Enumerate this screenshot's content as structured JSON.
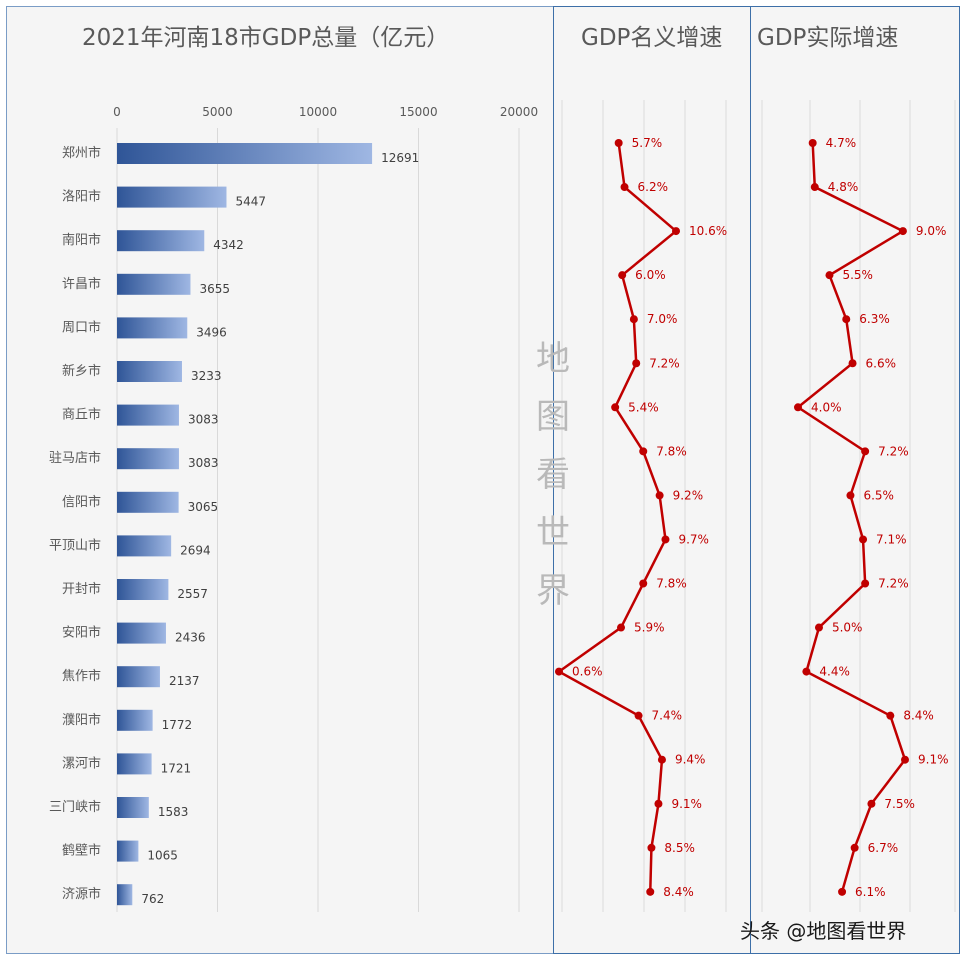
{
  "gdp_title": "2021年河南18市GDP总量（亿元）",
  "nominal_title": "GDP名义增速",
  "real_title": "GDP实际增速",
  "watermark": [
    "地",
    "图",
    "看",
    "世",
    "界"
  ],
  "credit": "头条 @地图看世界",
  "colors": {
    "bar_dark": "#2f5597",
    "bar_light": "#9fb7e3",
    "line": "#c00000",
    "label": "#c00000",
    "text": "#595959"
  },
  "chart_data": [
    {
      "type": "bar",
      "title": "2021年河南18市GDP总量（亿元）",
      "orientation": "horizontal",
      "categories": [
        "郑州市",
        "洛阳市",
        "南阳市",
        "许昌市",
        "周口市",
        "新乡市",
        "商丘市",
        "驻马店市",
        "信阳市",
        "平顶山市",
        "开封市",
        "安阳市",
        "焦作市",
        "濮阳市",
        "漯河市",
        "三门峡市",
        "鹤壁市",
        "济源市"
      ],
      "values": [
        12691,
        5447,
        4342,
        3655,
        3496,
        3233,
        3083,
        3083,
        3065,
        2694,
        2557,
        2436,
        2137,
        1772,
        1721,
        1583,
        1065,
        762
      ],
      "xlim": [
        0,
        20000
      ],
      "xticks": [
        0,
        5000,
        10000,
        15000,
        20000
      ],
      "grid": true
    },
    {
      "type": "line",
      "title": "GDP名义增速",
      "categories": [
        "郑州市",
        "洛阳市",
        "南阳市",
        "许昌市",
        "周口市",
        "新乡市",
        "商丘市",
        "驻马店市",
        "信阳市",
        "平顶山市",
        "开封市",
        "安阳市",
        "焦作市",
        "濮阳市",
        "漯河市",
        "三门峡市",
        "鹤壁市",
        "济源市"
      ],
      "values": [
        5.7,
        6.2,
        10.6,
        6.0,
        7.0,
        7.2,
        5.4,
        7.8,
        9.2,
        9.7,
        7.8,
        5.9,
        0.6,
        7.4,
        9.4,
        9.1,
        8.5,
        8.4
      ],
      "labels": [
        "5.7%",
        "6.2%",
        "10.6%",
        "6.0%",
        "7.0%",
        "7.2%",
        "5.4%",
        "7.8%",
        "9.2%",
        "9.7%",
        "7.8%",
        "5.9%",
        "0.6%",
        "7.4%",
        "9.4%",
        "9.1%",
        "8.5%",
        "8.4%"
      ],
      "grid": true
    },
    {
      "type": "line",
      "title": "GDP实际增速",
      "categories": [
        "郑州市",
        "洛阳市",
        "南阳市",
        "许昌市",
        "周口市",
        "新乡市",
        "商丘市",
        "驻马店市",
        "信阳市",
        "平顶山市",
        "开封市",
        "安阳市",
        "焦作市",
        "濮阳市",
        "漯河市",
        "三门峡市",
        "鹤壁市",
        "济源市"
      ],
      "values": [
        4.7,
        4.8,
        9.0,
        5.5,
        6.3,
        6.6,
        4.0,
        7.2,
        6.5,
        7.1,
        7.2,
        5.0,
        4.4,
        8.4,
        9.1,
        7.5,
        6.7,
        6.1
      ],
      "labels": [
        "4.7%",
        "4.8%",
        "9.0%",
        "5.5%",
        "6.3%",
        "6.6%",
        "4.0%",
        "7.2%",
        "6.5%",
        "7.1%",
        "7.2%",
        "5.0%",
        "4.4%",
        "8.4%",
        "9.1%",
        "7.5%",
        "6.7%",
        "6.1%"
      ],
      "grid": true
    }
  ]
}
